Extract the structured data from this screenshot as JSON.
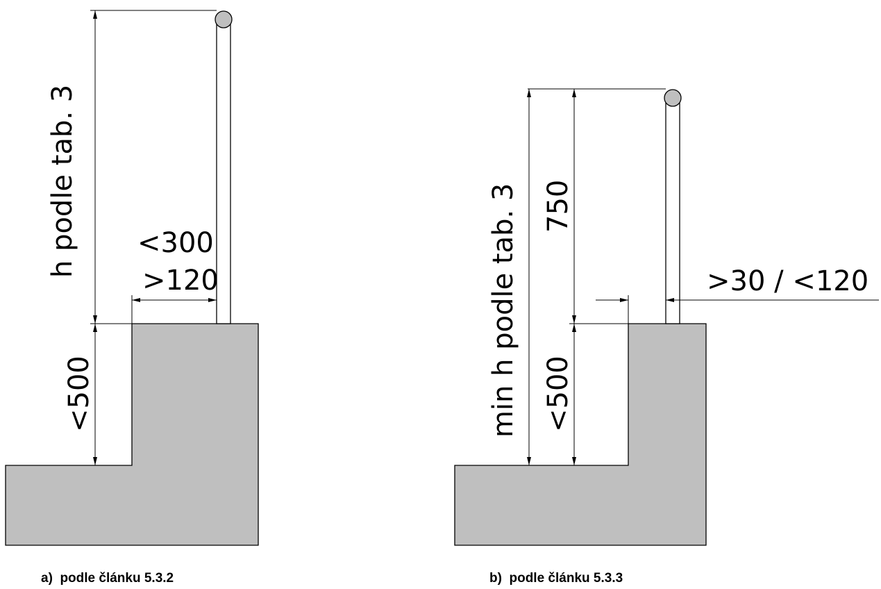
{
  "panel_a": {
    "dim_height": "h podle tab. 3",
    "dim_max_offset": "<300",
    "dim_min_offset": ">120",
    "dim_step": "<500",
    "caption": "a)  podle článku 5.3.2"
  },
  "panel_b": {
    "dim_height": "min h podle tab. 3",
    "dim_rail": "750",
    "dim_gap": ">30 / <120",
    "dim_step": "<500",
    "caption": "b)  podle článku 5.3.3"
  },
  "colors": {
    "fill": "#bfbfbf",
    "line": "#000000"
  }
}
